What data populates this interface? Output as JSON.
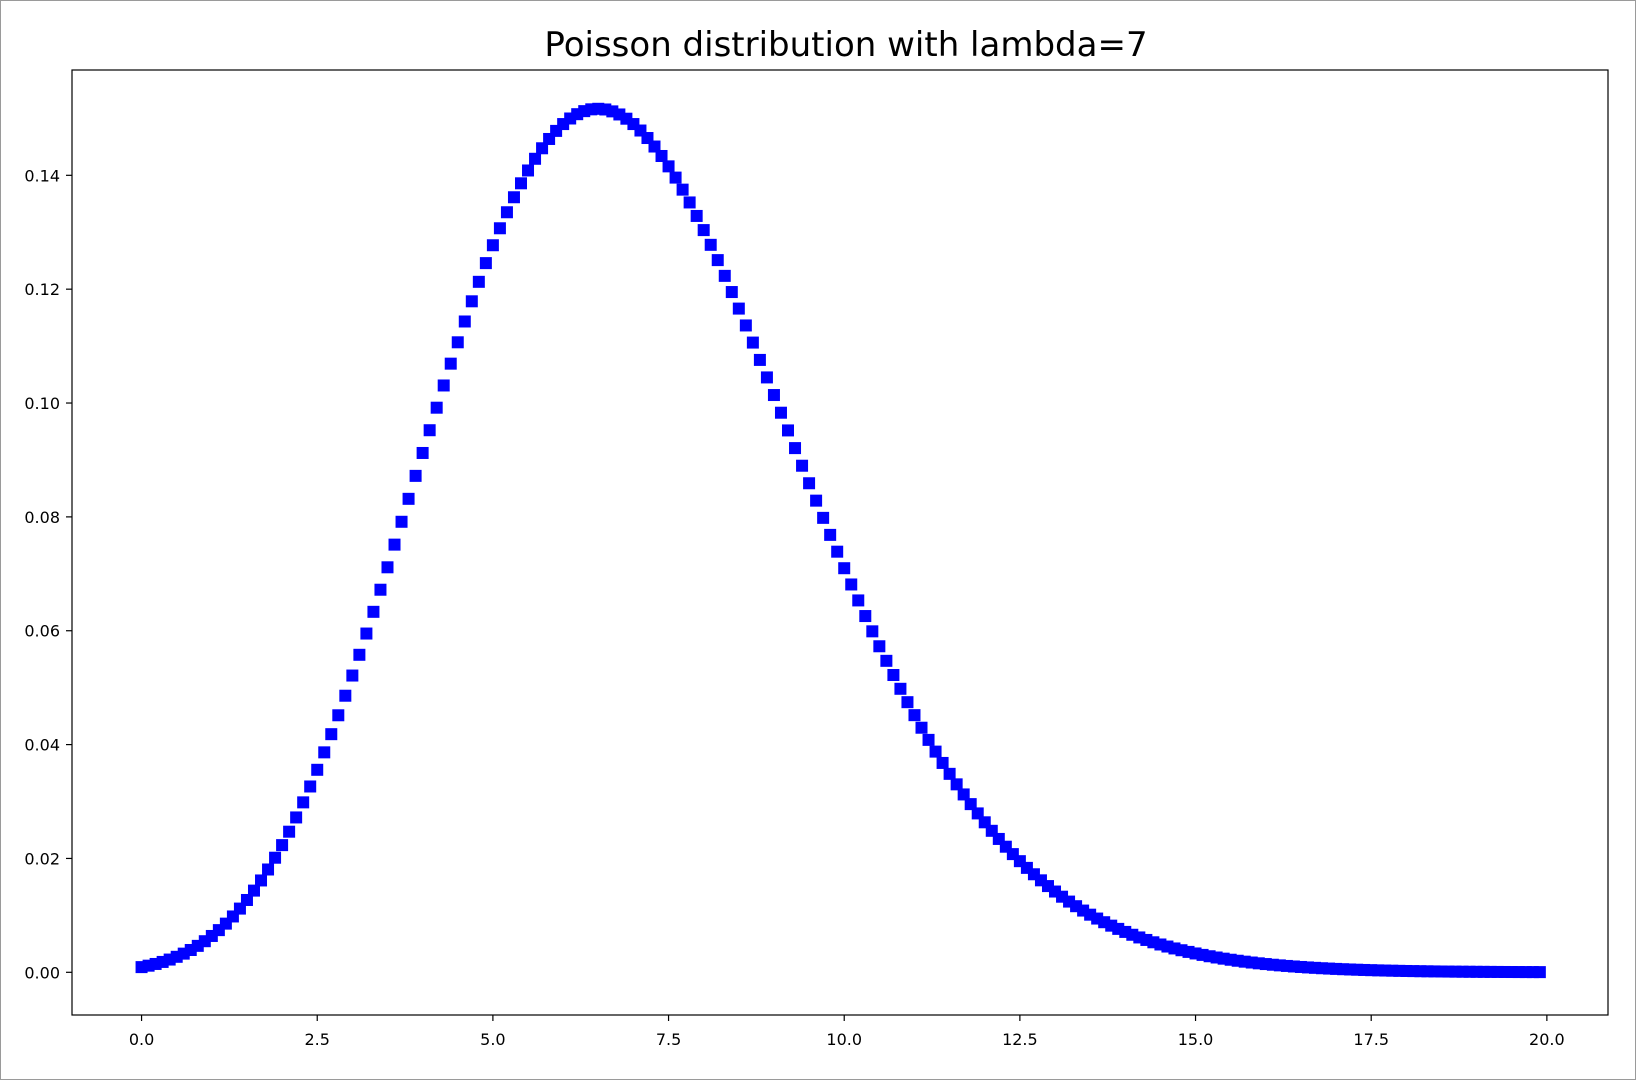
{
  "chart_data": {
    "type": "scatter",
    "title": "Poisson distribution with lambda=7",
    "xlabel": "",
    "ylabel": "",
    "xlim": [
      -0.99,
      20.87
    ],
    "ylim": [
      -0.0075,
      0.1585
    ],
    "x_ticks": [
      "0.0",
      "2.5",
      "5.0",
      "7.5",
      "10.0",
      "12.5",
      "15.0",
      "17.5",
      "20.0"
    ],
    "y_ticks": [
      "0.00",
      "0.02",
      "0.04",
      "0.06",
      "0.08",
      "0.10",
      "0.12",
      "0.14"
    ],
    "grid": false,
    "legend": "none",
    "marker": "square",
    "color": "#0000ff",
    "x_range": [
      0.0,
      19.9
    ],
    "x_step": 0.1,
    "lambda": 7,
    "series": [
      {
        "x": [
          0.0,
          0.5,
          1.0,
          1.5,
          2.0,
          2.5,
          3.0,
          3.5,
          4.0,
          4.5,
          5.0,
          5.5,
          6.0,
          6.5,
          7.0,
          7.5,
          8.0,
          8.5,
          9.0,
          9.5,
          10.0,
          10.5,
          11.0,
          11.5,
          12.0,
          12.5,
          13.0,
          13.5,
          14.0,
          14.5,
          15.0,
          15.5,
          16.0,
          16.5,
          17.0,
          17.5,
          18.0,
          18.5,
          19.0,
          19.5,
          19.9
        ],
        "y": [
          0.0009,
          0.0032,
          0.0064,
          0.0136,
          0.0223,
          0.0388,
          0.0521,
          0.0753,
          0.0912,
          0.1145,
          0.1277,
          0.1437,
          0.149,
          0.152,
          0.149,
          0.1406,
          0.1304,
          0.1162,
          0.1014,
          0.0863,
          0.071,
          0.0577,
          0.0452,
          0.0356,
          0.0264,
          0.0201,
          0.0142,
          0.0105,
          0.0071,
          0.0052,
          0.0033,
          0.0024,
          0.0015,
          0.0011,
          0.0006,
          0.0005,
          0.0002,
          0.0002,
          0.0001,
          0.0001,
          0.0001
        ]
      }
    ]
  }
}
